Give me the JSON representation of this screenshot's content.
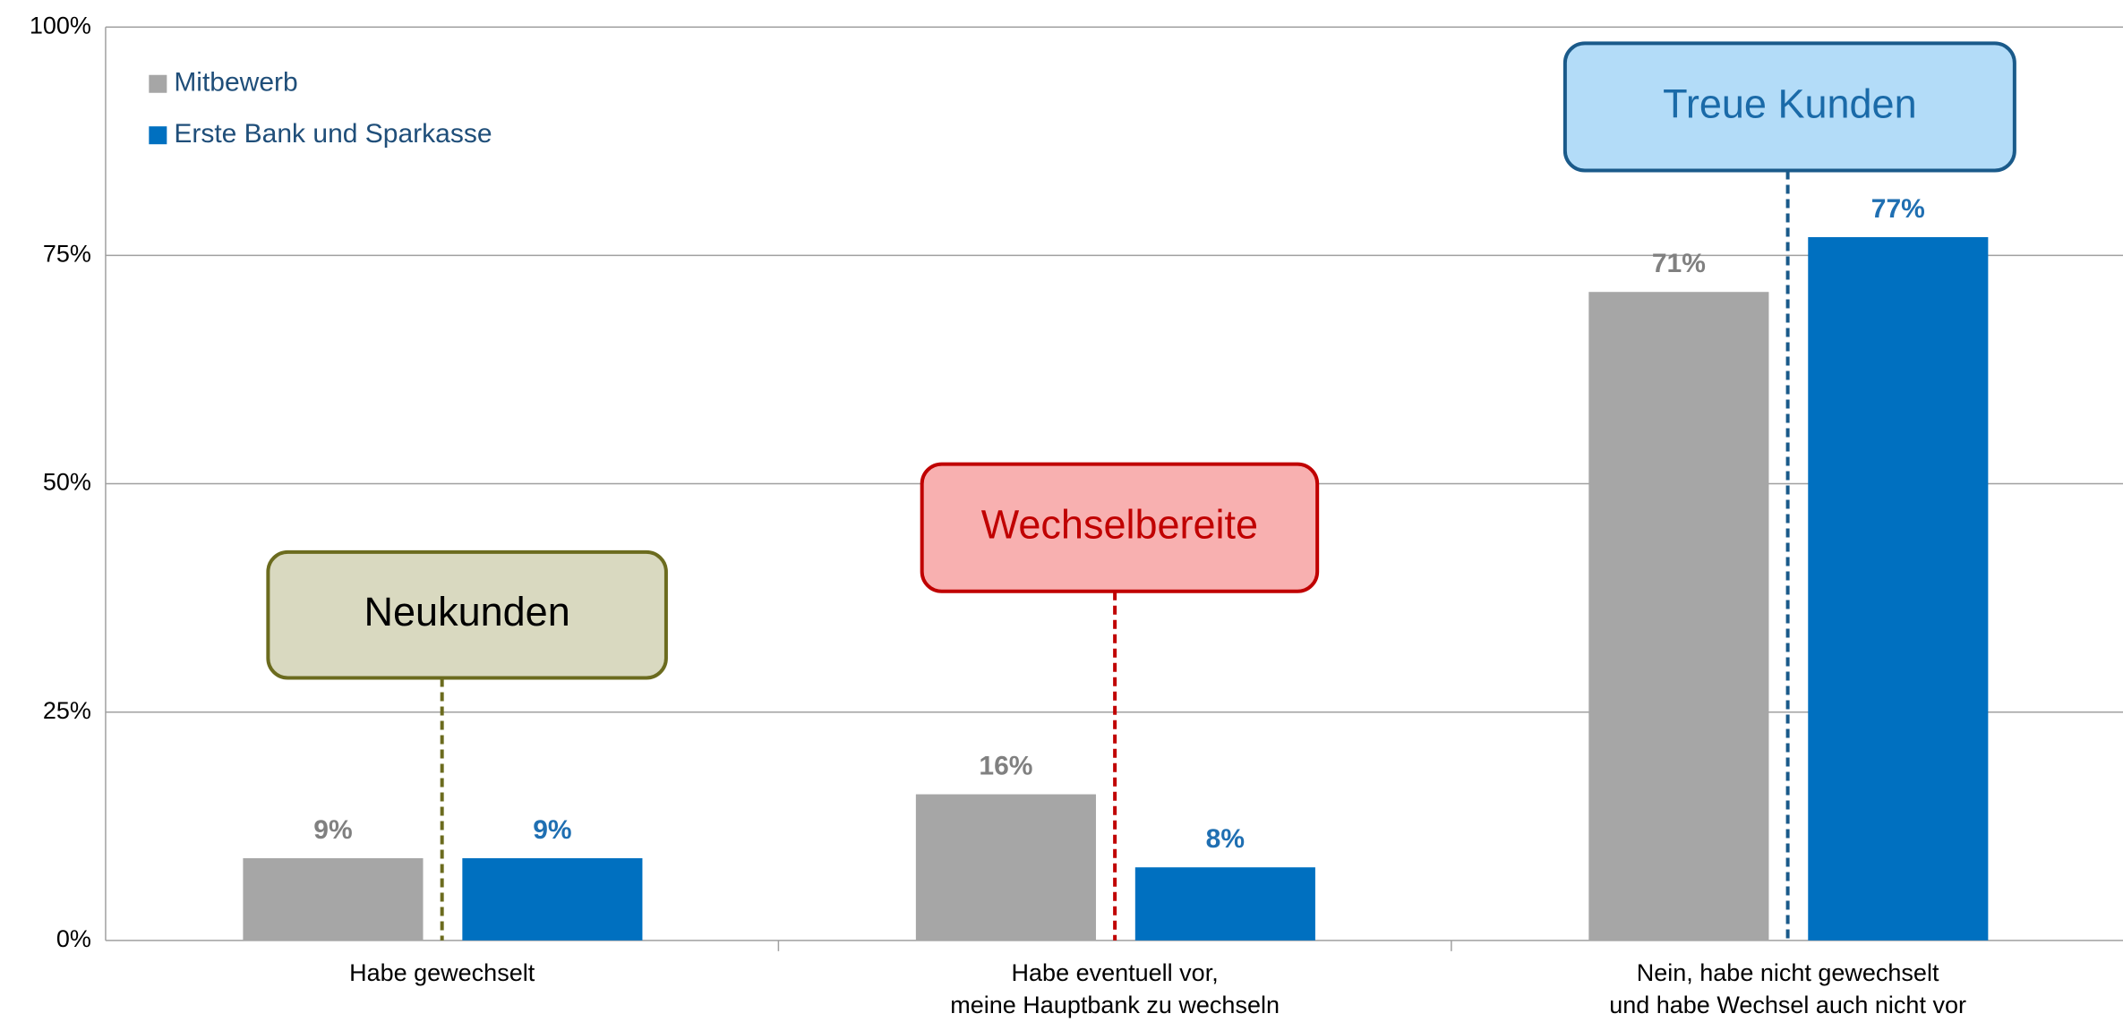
{
  "chart_data": {
    "type": "bar",
    "categories": [
      "Habe gewechselt",
      "Habe eventuell vor,\nmeine Hauptbank zu wechseln",
      "Nein, habe nicht gewechselt\nund habe Wechsel auch nicht vor"
    ],
    "series": [
      {
        "name": "Mitbewerb",
        "color": "#a6a6a6",
        "label_color": "#808080",
        "values": [
          9,
          16,
          71
        ],
        "value_labels": [
          "9%",
          "16%",
          "71%"
        ]
      },
      {
        "name": "Erste Bank und Sparkasse",
        "color": "#0070c0",
        "label_color": "#1f6fb2",
        "values": [
          9,
          8,
          77
        ],
        "value_labels": [
          "9%",
          "8%",
          "77%"
        ]
      }
    ],
    "ylim": [
      0,
      100
    ],
    "yticks": [
      {
        "value": 0,
        "label": "0%"
      },
      {
        "value": 25,
        "label": "25%"
      },
      {
        "value": 50,
        "label": "50%"
      },
      {
        "value": 75,
        "label": "75%"
      },
      {
        "value": 100,
        "label": "100%"
      }
    ],
    "grid": true,
    "legend": "top-left",
    "annotations": [
      {
        "text": "Neukunden",
        "fill": "#d9d9c0",
        "stroke": "#6b6b1e",
        "text_color": "#000000"
      },
      {
        "text": "Wechselbereite",
        "fill": "#f8b0b0",
        "stroke": "#c00000",
        "text_color": "#c00000"
      },
      {
        "text": "Treue Kunden",
        "fill": "#b3dcf8",
        "stroke": "#1a5a8a",
        "text_color": "#1a6aa8"
      }
    ]
  }
}
